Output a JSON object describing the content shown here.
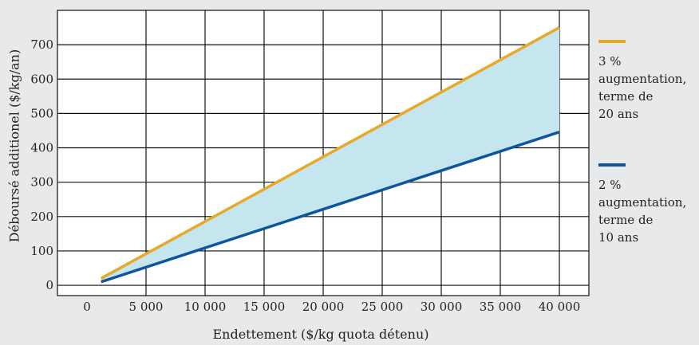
{
  "chart_data": {
    "type": "line",
    "xlabel": "Endettement ($/kg quota détenu)",
    "ylabel": "Déboursé additionel ($/kg/an)",
    "xlim": [
      -2500,
      42500
    ],
    "ylim": [
      -30,
      800
    ],
    "x_ticks": [
      0,
      5000,
      10000,
      15000,
      20000,
      25000,
      30000,
      35000,
      40000
    ],
    "x_tick_labels": [
      "0",
      "5 000",
      "10 000",
      "15 000",
      "20 000",
      "25 000",
      "30 000",
      "35 000",
      "40 000"
    ],
    "y_ticks": [
      0,
      100,
      200,
      300,
      400,
      500,
      600,
      700
    ],
    "y_tick_labels": [
      "0",
      "100",
      "200",
      "300",
      "400",
      "500",
      "600",
      "700"
    ],
    "grid": true,
    "legend_position": "right",
    "fill_between_series": true,
    "fill_color": "#c5e6ee",
    "series": [
      {
        "name": "3 % augmentation, terme de 20 ans",
        "color": "#e8a92a",
        "x": [
          1200,
          40000
        ],
        "y": [
          20,
          750
        ]
      },
      {
        "name": "2 % augmentation, terme de 10 ans",
        "color": "#0d559c",
        "x": [
          1200,
          40000
        ],
        "y": [
          10,
          446
        ]
      }
    ]
  },
  "legend": [
    {
      "text": "3 %\naugmentation,\nterme de\n20 ans",
      "color": "#e8a92a"
    },
    {
      "text": "2 %\naugmentation,\nterme de\n10 ans",
      "color": "#0d559c"
    }
  ]
}
